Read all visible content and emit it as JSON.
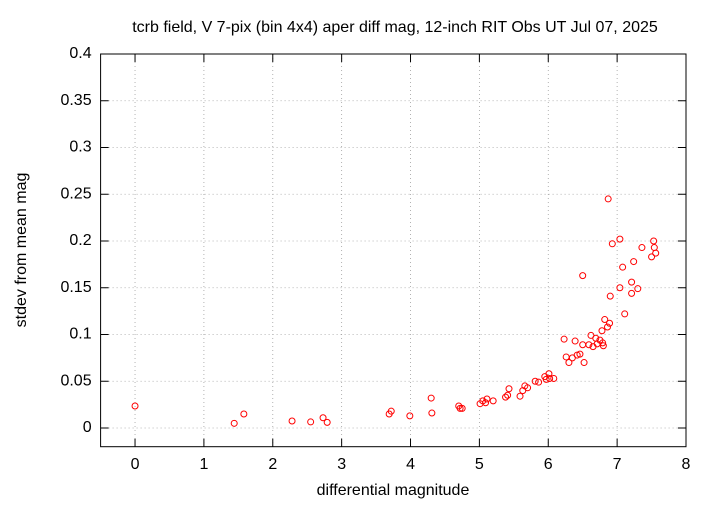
{
  "chart_data": {
    "type": "scatter",
    "title": "tcrb field, V 7-pix (bin 4x4) aper diff mag,  12-inch RIT Obs UT Jul 07, 2025",
    "xlabel": "differential magnitude",
    "ylabel": "stdev from mean mag",
    "xlim": [
      -0.5,
      8
    ],
    "ylim": [
      -0.02,
      0.4
    ],
    "xticks": [
      0,
      1,
      2,
      3,
      4,
      5,
      6,
      7,
      8
    ],
    "yticks": [
      0,
      0.05,
      0.1,
      0.15,
      0.2,
      0.25,
      0.3,
      0.35,
      0.4
    ],
    "grid": true,
    "color": "#ff0000",
    "x": [
      0,
      1.44,
      1.58,
      2.28,
      2.55,
      2.73,
      2.79,
      3.69,
      3.72,
      3.99,
      4.3,
      4.31,
      4.7,
      4.72,
      4.75,
      5.01,
      5.05,
      5.09,
      5.11,
      5.2,
      5.38,
      5.41,
      5.43,
      5.59,
      5.63,
      5.66,
      5.7,
      5.81,
      5.86,
      5.95,
      5.97,
      6.01,
      6.02,
      6.08,
      6.23,
      6.26,
      6.3,
      6.35,
      6.39,
      6.42,
      6.46,
      6.5,
      6.52,
      6.5,
      6.59,
      6.62,
      6.65,
      6.69,
      6.71,
      6.75,
      6.79,
      6.8,
      6.78,
      6.82,
      6.86,
      6.89,
      6.9,
      6.87,
      6.93,
      7.04,
      7.04,
      7.08,
      7.11,
      7.21,
      7.21,
      7.24,
      7.3,
      7.36,
      7.5,
      7.53,
      7.54,
      7.56
    ],
    "y": [
      0.0235,
      0.005,
      0.015,
      0.0075,
      0.0065,
      0.011,
      0.006,
      0.015,
      0.018,
      0.013,
      0.032,
      0.016,
      0.0235,
      0.021,
      0.021,
      0.026,
      0.029,
      0.027,
      0.031,
      0.029,
      0.033,
      0.035,
      0.042,
      0.034,
      0.04,
      0.045,
      0.043,
      0.05,
      0.049,
      0.055,
      0.052,
      0.058,
      0.053,
      0.053,
      0.095,
      0.076,
      0.07,
      0.075,
      0.093,
      0.078,
      0.079,
      0.089,
      0.07,
      0.163,
      0.089,
      0.099,
      0.087,
      0.096,
      0.09,
      0.094,
      0.091,
      0.088,
      0.104,
      0.116,
      0.108,
      0.112,
      0.141,
      0.245,
      0.197,
      0.202,
      0.15,
      0.172,
      0.122,
      0.144,
      0.156,
      0.178,
      0.149,
      0.193,
      0.183,
      0.2,
      0.193,
      0.187
    ]
  }
}
